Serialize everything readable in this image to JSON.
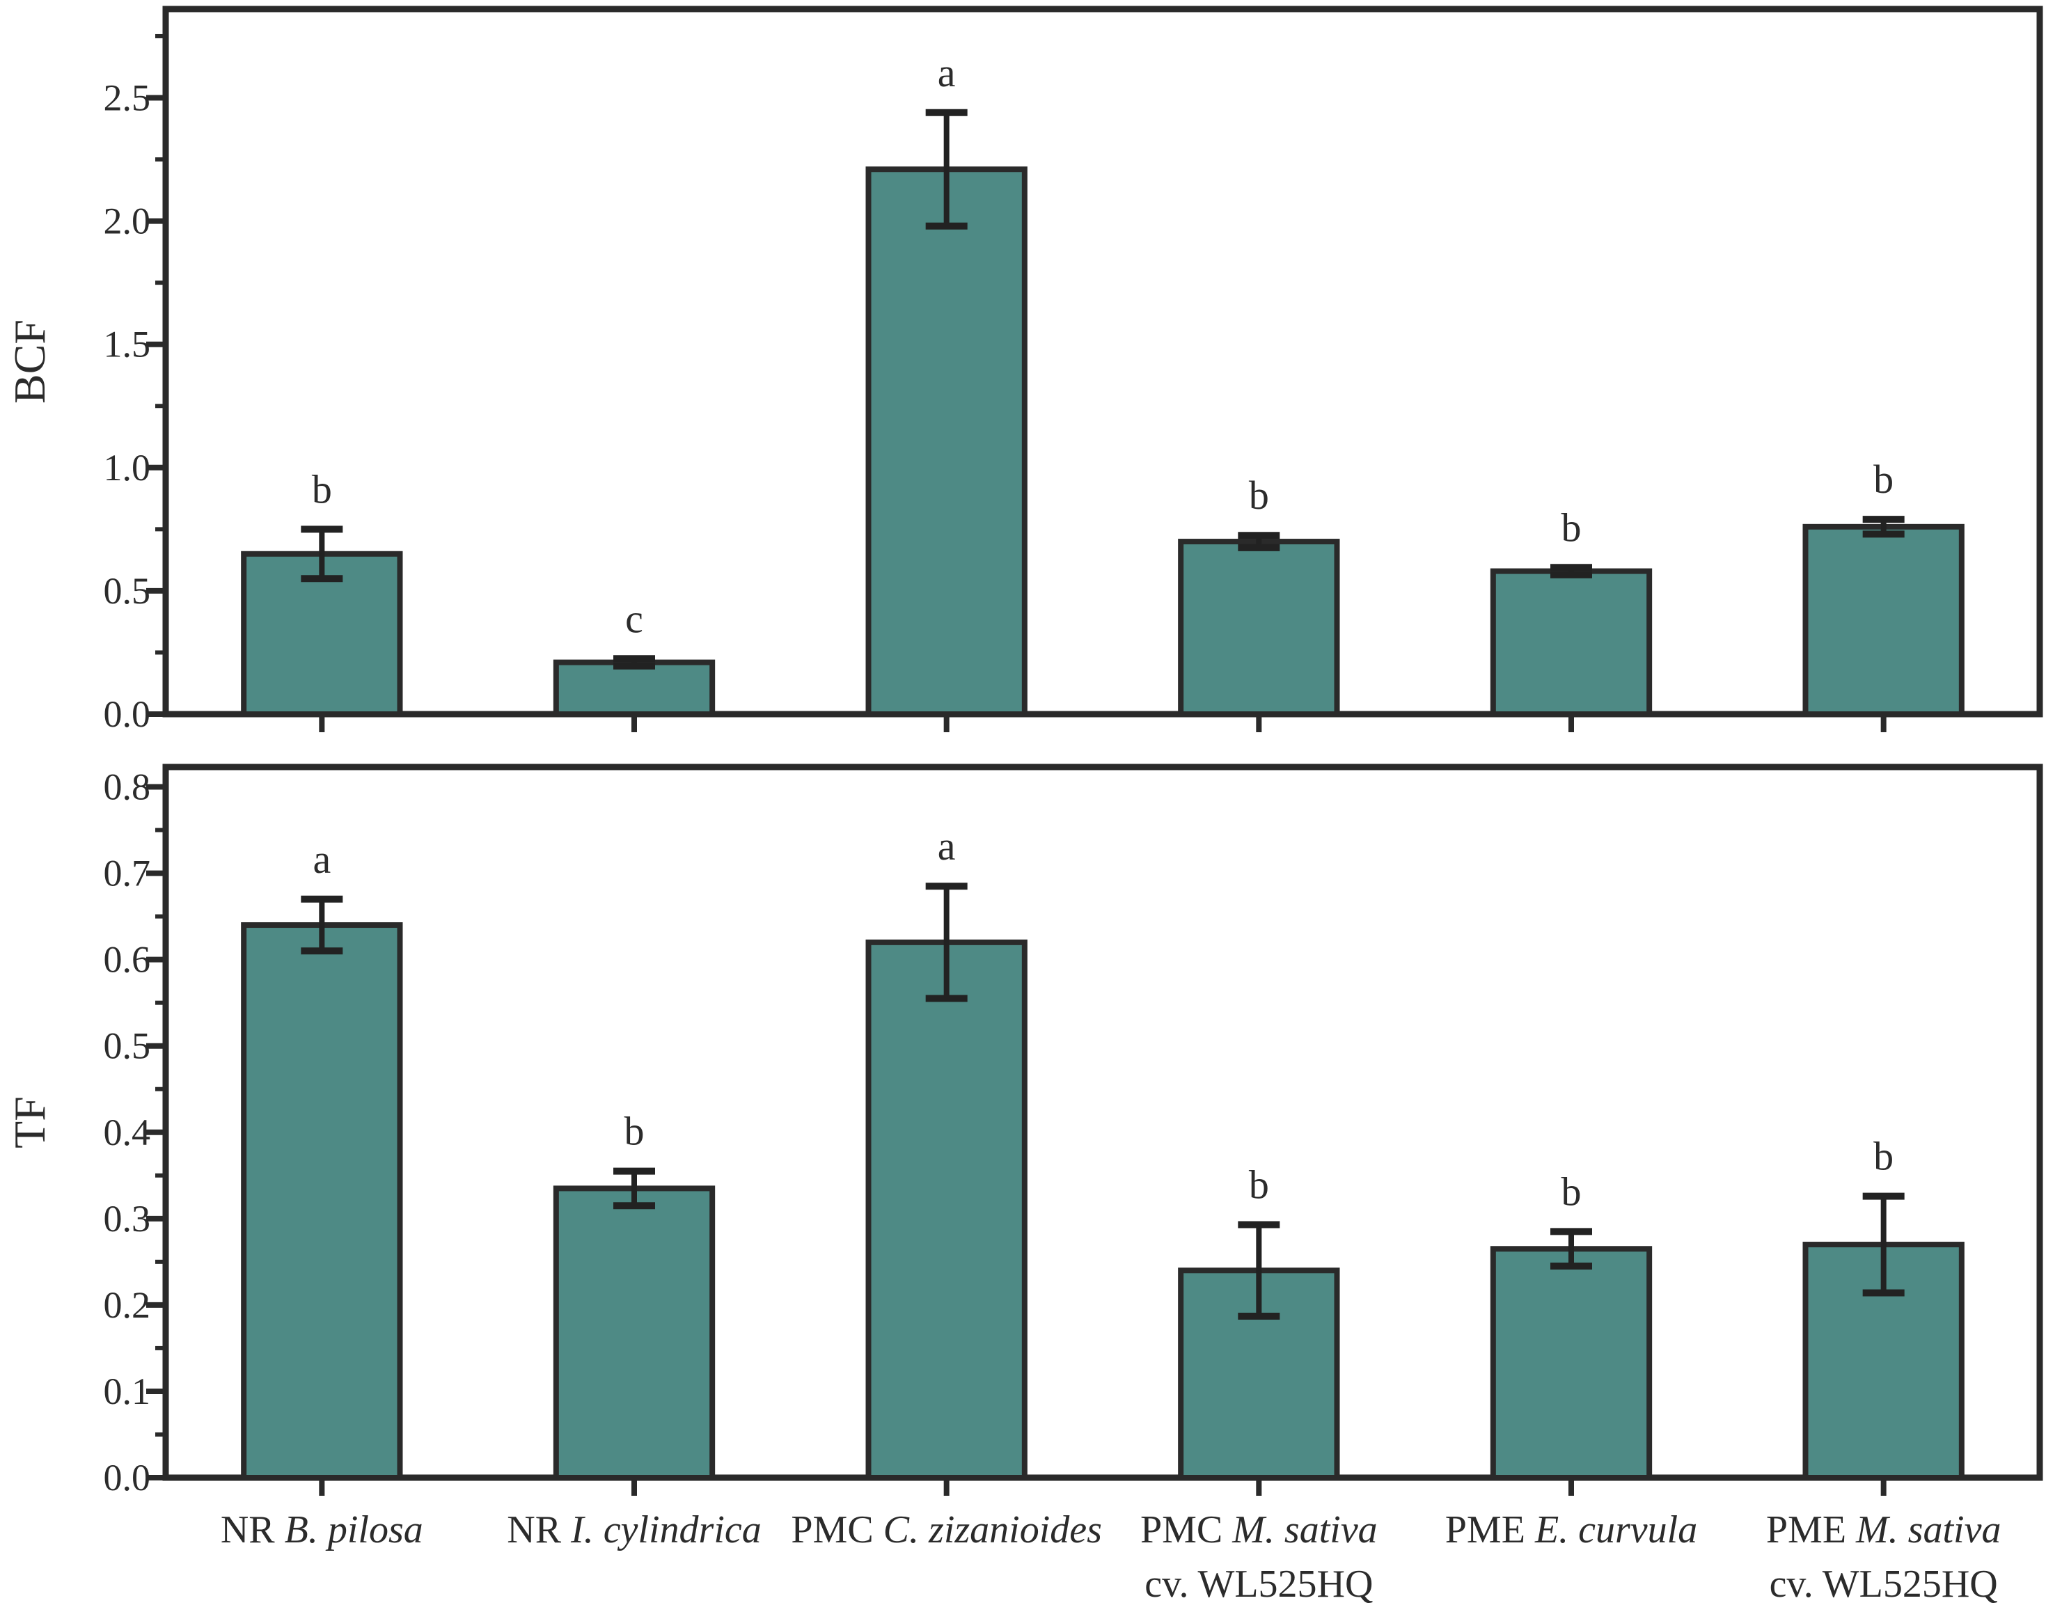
{
  "figure": {
    "background": "#ffffff",
    "bar_fill": "#4e8a85",
    "bar_edge": "#2a2a2a",
    "axis_color": "#2a2a2a",
    "error_color": "#222222",
    "text_color": "#2b2b2b"
  },
  "categories": [
    {
      "prefix": "NR",
      "species": "B. pilosa",
      "line2": ""
    },
    {
      "prefix": "NR",
      "species": "I. cylindrica",
      "line2": ""
    },
    {
      "prefix": "PMC",
      "species": "C. zizanioides",
      "line2": ""
    },
    {
      "prefix": "PMC",
      "species": "M. sativa",
      "line2": "cv. WL525HQ"
    },
    {
      "prefix": "PME",
      "species": "E. curvula",
      "line2": ""
    },
    {
      "prefix": "PME",
      "species": "M. sativa",
      "line2": "cv. WL525HQ"
    }
  ],
  "chart_data": [
    {
      "type": "bar",
      "panel": "top",
      "title": "",
      "xlabel": "",
      "ylabel": "BCF",
      "ylim": [
        0,
        2.86
      ],
      "yticks": [
        "0.0",
        "0.5",
        "1.0",
        "1.5",
        "2.0",
        "2.5"
      ],
      "ytick_values": [
        0.0,
        0.5,
        1.0,
        1.5,
        2.0,
        2.5
      ],
      "minor_tick_step": 0.25,
      "grid": false,
      "legend": "none",
      "categories": [
        "NR B. pilosa",
        "NR I. cylindrica",
        "PMC C. zizanioides",
        "PMC M. sativa cv. WL525HQ",
        "PME E. curvula",
        "PME M. sativa cv. WL525HQ"
      ],
      "values": [
        0.65,
        0.21,
        2.21,
        0.7,
        0.58,
        0.76
      ],
      "errors": [
        0.1,
        0.015,
        0.23,
        0.025,
        0.015,
        0.03
      ],
      "letters": [
        "b",
        "c",
        "a",
        "b",
        "b",
        "b"
      ]
    },
    {
      "type": "bar",
      "panel": "bottom",
      "title": "",
      "xlabel": "",
      "ylabel": "TF",
      "ylim": [
        0,
        0.823
      ],
      "yticks": [
        "0.0",
        "0.1",
        "0.2",
        "0.3",
        "0.4",
        "0.5",
        "0.6",
        "0.7",
        "0.8"
      ],
      "ytick_values": [
        0.0,
        0.1,
        0.2,
        0.3,
        0.4,
        0.5,
        0.6,
        0.7,
        0.8
      ],
      "minor_tick_step": 0.05,
      "grid": false,
      "legend": "none",
      "categories": [
        "NR B. pilosa",
        "NR I. cylindrica",
        "PMC C. zizanioides",
        "PMC M. sativa cv. WL525HQ",
        "PME E. curvula",
        "PME M. sativa cv. WL525HQ"
      ],
      "values": [
        0.64,
        0.335,
        0.62,
        0.24,
        0.265,
        0.27
      ],
      "errors": [
        0.03,
        0.02,
        0.065,
        0.053,
        0.02,
        0.056
      ],
      "letters": [
        "a",
        "b",
        "a",
        "b",
        "b",
        "b"
      ]
    }
  ]
}
